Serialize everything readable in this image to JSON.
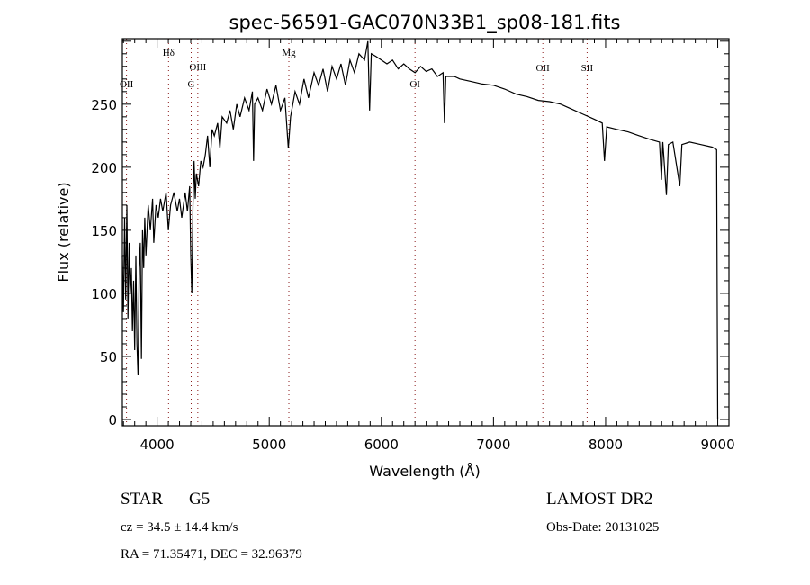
{
  "chart_data": {
    "type": "line",
    "title": "spec-56591-GAC070N33B1_sp08-181.fits",
    "xlabel": "Wavelength (Å)",
    "ylabel": "Flux (relative)",
    "xlim": [
      3690,
      9100
    ],
    "ylim": [
      -5,
      302
    ],
    "xticks": [
      4000,
      5000,
      6000,
      7000,
      8000,
      9000
    ],
    "yticks": [
      0,
      50,
      100,
      150,
      200,
      250
    ],
    "grid": false,
    "series": [
      {
        "name": "spectrum",
        "color": "#000000",
        "points": [
          [
            3690,
            130
          ],
          [
            3700,
            85
          ],
          [
            3710,
            160
          ],
          [
            3720,
            95
          ],
          [
            3730,
            170
          ],
          [
            3740,
            80
          ],
          [
            3750,
            140
          ],
          [
            3760,
            100
          ],
          [
            3770,
            120
          ],
          [
            3780,
            70
          ],
          [
            3790,
            110
          ],
          [
            3800,
            55
          ],
          [
            3810,
            130
          ],
          [
            3820,
            60
          ],
          [
            3830,
            35
          ],
          [
            3840,
            120
          ],
          [
            3850,
            140
          ],
          [
            3860,
            48
          ],
          [
            3870,
            150
          ],
          [
            3880,
            120
          ],
          [
            3890,
            160
          ],
          [
            3900,
            130
          ],
          [
            3920,
            170
          ],
          [
            3940,
            150
          ],
          [
            3960,
            175
          ],
          [
            3970,
            140
          ],
          [
            3990,
            170
          ],
          [
            4010,
            160
          ],
          [
            4030,
            175
          ],
          [
            4050,
            165
          ],
          [
            4080,
            180
          ],
          [
            4100,
            150
          ],
          [
            4120,
            170
          ],
          [
            4150,
            180
          ],
          [
            4180,
            165
          ],
          [
            4200,
            175
          ],
          [
            4220,
            160
          ],
          [
            4250,
            180
          ],
          [
            4270,
            165
          ],
          [
            4290,
            185
          ],
          [
            4300,
            130
          ],
          [
            4310,
            100
          ],
          [
            4320,
            170
          ],
          [
            4330,
            205
          ],
          [
            4340,
            175
          ],
          [
            4350,
            195
          ],
          [
            4370,
            185
          ],
          [
            4390,
            205
          ],
          [
            4410,
            200
          ],
          [
            4430,
            210
          ],
          [
            4450,
            225
          ],
          [
            4470,
            200
          ],
          [
            4490,
            230
          ],
          [
            4510,
            225
          ],
          [
            4540,
            235
          ],
          [
            4560,
            215
          ],
          [
            4580,
            240
          ],
          [
            4620,
            235
          ],
          [
            4650,
            245
          ],
          [
            4680,
            230
          ],
          [
            4710,
            250
          ],
          [
            4740,
            240
          ],
          [
            4780,
            255
          ],
          [
            4820,
            245
          ],
          [
            4850,
            260
          ],
          [
            4860,
            205
          ],
          [
            4870,
            250
          ],
          [
            4900,
            255
          ],
          [
            4940,
            245
          ],
          [
            4980,
            262
          ],
          [
            5020,
            250
          ],
          [
            5060,
            265
          ],
          [
            5100,
            245
          ],
          [
            5140,
            255
          ],
          [
            5170,
            215
          ],
          [
            5190,
            240
          ],
          [
            5230,
            260
          ],
          [
            5270,
            250
          ],
          [
            5310,
            270
          ],
          [
            5350,
            255
          ],
          [
            5400,
            275
          ],
          [
            5440,
            265
          ],
          [
            5480,
            278
          ],
          [
            5520,
            260
          ],
          [
            5560,
            280
          ],
          [
            5600,
            270
          ],
          [
            5640,
            282
          ],
          [
            5680,
            265
          ],
          [
            5720,
            285
          ],
          [
            5760,
            275
          ],
          [
            5800,
            290
          ],
          [
            5850,
            285
          ],
          [
            5880,
            300
          ],
          [
            5895,
            245
          ],
          [
            5910,
            290
          ],
          [
            5950,
            288
          ],
          [
            6000,
            285
          ],
          [
            6050,
            282
          ],
          [
            6100,
            285
          ],
          [
            6150,
            278
          ],
          [
            6200,
            282
          ],
          [
            6250,
            278
          ],
          [
            6300,
            275
          ],
          [
            6350,
            280
          ],
          [
            6400,
            276
          ],
          [
            6450,
            278
          ],
          [
            6500,
            272
          ],
          [
            6550,
            275
          ],
          [
            6563,
            235
          ],
          [
            6575,
            272
          ],
          [
            6650,
            272
          ],
          [
            6700,
            270
          ],
          [
            6800,
            268
          ],
          [
            6900,
            266
          ],
          [
            7000,
            265
          ],
          [
            7100,
            262
          ],
          [
            7200,
            258
          ],
          [
            7300,
            256
          ],
          [
            7400,
            253
          ],
          [
            7500,
            252
          ],
          [
            7600,
            250
          ],
          [
            7700,
            246
          ],
          [
            7800,
            242
          ],
          [
            7900,
            238
          ],
          [
            7970,
            235
          ],
          [
            7990,
            205
          ],
          [
            8010,
            232
          ],
          [
            8100,
            230
          ],
          [
            8200,
            228
          ],
          [
            8300,
            225
          ],
          [
            8400,
            222
          ],
          [
            8480,
            220
          ],
          [
            8498,
            190
          ],
          [
            8510,
            220
          ],
          [
            8542,
            178
          ],
          [
            8560,
            218
          ],
          [
            8600,
            220
          ],
          [
            8662,
            185
          ],
          [
            8680,
            218
          ],
          [
            8750,
            220
          ],
          [
            8850,
            218
          ],
          [
            8950,
            216
          ],
          [
            8990,
            214
          ],
          [
            8995,
            100
          ],
          [
            9000,
            0
          ]
        ]
      }
    ],
    "line_markers": [
      {
        "label": "OII",
        "wavelength": 3727
      },
      {
        "label": "Hδ",
        "wavelength": 4102
      },
      {
        "label": "G",
        "wavelength": 4304
      },
      {
        "label": "OIII",
        "wavelength": 4363
      },
      {
        "label": "Mg",
        "wavelength": 5175
      },
      {
        "label": "OI",
        "wavelength": 6300
      },
      {
        "label": "OII",
        "wavelength": 7440
      },
      {
        "label": "SII",
        "wavelength": 7835
      }
    ],
    "marker_color": "#8b1a1a"
  },
  "info": {
    "class": "STAR",
    "subclass": "G5",
    "cz": "cz = 34.5 ± 14.4 km/s",
    "radec": "RA =  71.35471, DEC =  32.96379",
    "survey": "LAMOST DR2",
    "obs_date": "Obs-Date: 20131025"
  }
}
